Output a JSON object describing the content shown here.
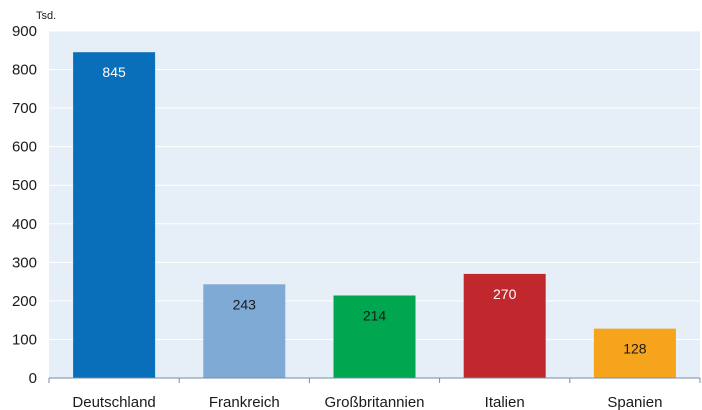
{
  "chart_data": {
    "type": "bar",
    "ylabel": "Tsd.",
    "categories": [
      "Deutschland",
      "Frankreich",
      "Großbritannien",
      "Italien",
      "Spanien"
    ],
    "values": [
      845,
      243,
      214,
      270,
      128
    ],
    "value_labels": [
      "845",
      "243",
      "214",
      "270",
      "128"
    ],
    "colors": [
      "#0a6fba",
      "#7faad6",
      "#00a650",
      "#c0282e",
      "#f5a41b"
    ],
    "label_colors": [
      "#ffffff",
      "#1a1a1a",
      "#1a1a1a",
      "#ffffff",
      "#1a1a1a"
    ],
    "ylim": [
      0,
      900
    ],
    "yticks": [
      0,
      100,
      200,
      300,
      400,
      500,
      600,
      700,
      800,
      900
    ],
    "grid": true,
    "plot_background": "#e6eef8"
  }
}
